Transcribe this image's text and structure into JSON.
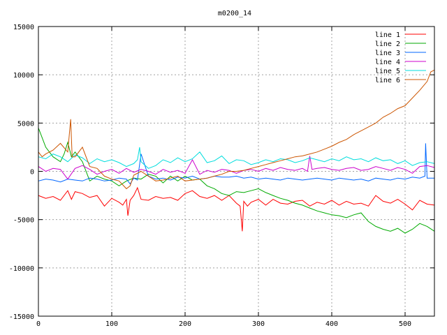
{
  "chart_data": {
    "type": "line",
    "title": "m0200_14",
    "xlabel": "",
    "ylabel": "",
    "xlim": [
      0,
      540
    ],
    "ylim": [
      -15000,
      15000
    ],
    "xticks": [
      0,
      100,
      200,
      300,
      400,
      500
    ],
    "yticks": [
      -15000,
      -10000,
      -5000,
      0,
      5000,
      10000,
      15000
    ],
    "grid": true,
    "legend_position": "top-right",
    "series": [
      {
        "name": "line 1",
        "color": "#ff0000",
        "x": [
          0,
          10,
          20,
          30,
          40,
          45,
          50,
          60,
          70,
          80,
          90,
          100,
          110,
          115,
          120,
          122,
          125,
          130,
          135,
          140,
          150,
          160,
          170,
          180,
          190,
          200,
          210,
          220,
          230,
          240,
          250,
          260,
          270,
          275,
          278,
          280,
          285,
          290,
          300,
          310,
          320,
          330,
          340,
          350,
          360,
          370,
          380,
          390,
          400,
          410,
          420,
          430,
          440,
          450,
          460,
          470,
          480,
          490,
          500,
          510,
          520,
          530,
          540
        ],
        "y": [
          -2500,
          -2800,
          -2600,
          -3000,
          -2000,
          -2900,
          -2100,
          -2300,
          -2700,
          -2500,
          -3600,
          -2800,
          -3200,
          -3500,
          -2900,
          -4600,
          -3000,
          -2500,
          -1700,
          -2900,
          -3000,
          -2600,
          -2800,
          -2700,
          -3000,
          -2300,
          -2000,
          -2600,
          -2800,
          -2500,
          -3000,
          -2500,
          -3300,
          -3600,
          -6200,
          -3100,
          -3600,
          -3200,
          -2900,
          -3500,
          -2900,
          -3300,
          -3400,
          -3100,
          -3000,
          -3600,
          -3200,
          -3400,
          -3000,
          -3500,
          -3100,
          -3400,
          -3300,
          -3600,
          -2500,
          -3100,
          -3300,
          -2900,
          -3400,
          -4000,
          -3000,
          -3400,
          -3500
        ]
      },
      {
        "name": "line 2",
        "color": "#00aa00",
        "x": [
          0,
          10,
          20,
          30,
          35,
          40,
          45,
          50,
          60,
          70,
          80,
          90,
          100,
          110,
          120,
          130,
          140,
          150,
          160,
          170,
          180,
          190,
          200,
          210,
          220,
          230,
          240,
          250,
          260,
          270,
          280,
          290,
          300,
          310,
          320,
          330,
          340,
          350,
          360,
          370,
          380,
          390,
          400,
          410,
          420,
          430,
          440,
          450,
          460,
          470,
          480,
          490,
          500,
          510,
          520,
          530,
          540
        ],
        "y": [
          4500,
          2500,
          1500,
          1000,
          1800,
          3000,
          1500,
          2000,
          1000,
          -1000,
          -500,
          -800,
          -1000,
          -1500,
          -1000,
          -700,
          -800,
          -300,
          -500,
          -1200,
          -500,
          -1000,
          -500,
          -900,
          -800,
          -1500,
          -1800,
          -2300,
          -2500,
          -2100,
          -2200,
          -2000,
          -1800,
          -2200,
          -2500,
          -2800,
          -3000,
          -3300,
          -3500,
          -3800,
          -4100,
          -4300,
          -4500,
          -4600,
          -4800,
          -4500,
          -4300,
          -5200,
          -5700,
          -6000,
          -6200,
          -5900,
          -6400,
          -6000,
          -5400,
          -5700,
          -6200
        ]
      },
      {
        "name": "line 3",
        "color": "#0066ff",
        "x": [
          0,
          10,
          20,
          30,
          40,
          50,
          60,
          70,
          80,
          90,
          100,
          110,
          120,
          125,
          130,
          135,
          140,
          150,
          160,
          170,
          180,
          190,
          200,
          210,
          220,
          230,
          240,
          250,
          260,
          270,
          280,
          290,
          300,
          310,
          320,
          330,
          340,
          350,
          360,
          370,
          380,
          390,
          400,
          410,
          420,
          430,
          440,
          450,
          460,
          470,
          480,
          490,
          500,
          510,
          520,
          527,
          528,
          530,
          540
        ],
        "y": [
          -1000,
          -800,
          -900,
          -1100,
          -800,
          -900,
          -1000,
          -700,
          -800,
          -1000,
          -900,
          -700,
          -800,
          -1300,
          -700,
          -900,
          1800,
          -500,
          -800,
          -700,
          -900,
          -600,
          -700,
          -500,
          -800,
          -700,
          -500,
          -600,
          -600,
          -500,
          -700,
          -600,
          -800,
          -700,
          -800,
          -900,
          -700,
          -800,
          -900,
          -800,
          -700,
          -800,
          -900,
          -700,
          -800,
          -900,
          -800,
          -1000,
          -700,
          -800,
          -900,
          -700,
          -800,
          -600,
          -700,
          -500,
          2900,
          -700,
          -700
        ]
      },
      {
        "name": "line 4",
        "color": "#cc00cc",
        "x": [
          0,
          10,
          20,
          30,
          40,
          50,
          60,
          70,
          80,
          90,
          100,
          110,
          120,
          130,
          140,
          150,
          160,
          170,
          180,
          190,
          200,
          210,
          220,
          230,
          240,
          250,
          260,
          270,
          280,
          290,
          300,
          310,
          320,
          330,
          340,
          350,
          360,
          367,
          370,
          373,
          380,
          390,
          400,
          410,
          420,
          430,
          440,
          450,
          460,
          470,
          480,
          490,
          500,
          510,
          520,
          530,
          540
        ],
        "y": [
          500,
          0,
          300,
          200,
          -800,
          300,
          600,
          200,
          -300,
          0,
          200,
          -200,
          300,
          -100,
          200,
          0,
          -300,
          200,
          -100,
          100,
          -200,
          1200,
          -300,
          100,
          -100,
          200,
          100,
          -200,
          100,
          200,
          0,
          300,
          100,
          400,
          200,
          100,
          300,
          0,
          1600,
          200,
          300,
          400,
          200,
          100,
          300,
          400,
          100,
          200,
          500,
          300,
          100,
          400,
          200,
          -200,
          500,
          600,
          400
        ]
      },
      {
        "name": "line 5",
        "color": "#00dddd",
        "x": [
          0,
          10,
          20,
          30,
          40,
          50,
          60,
          70,
          80,
          90,
          100,
          110,
          120,
          130,
          135,
          138,
          140,
          150,
          160,
          170,
          180,
          190,
          200,
          210,
          220,
          230,
          240,
          250,
          260,
          270,
          280,
          290,
          300,
          310,
          320,
          330,
          340,
          350,
          360,
          370,
          380,
          390,
          400,
          410,
          420,
          430,
          440,
          450,
          460,
          470,
          480,
          490,
          500,
          510,
          520,
          530,
          540
        ],
        "y": [
          1500,
          1300,
          1800,
          1500,
          1000,
          1700,
          1400,
          800,
          1300,
          1000,
          1200,
          900,
          500,
          800,
          1200,
          2500,
          1000,
          300,
          600,
          1200,
          900,
          1400,
          1000,
          1300,
          2000,
          900,
          1100,
          1600,
          800,
          1200,
          1100,
          700,
          900,
          1200,
          1000,
          1300,
          1200,
          900,
          1100,
          1400,
          1200,
          1000,
          1300,
          1100,
          1500,
          1200,
          1300,
          1000,
          1400,
          1100,
          1200,
          800,
          1100,
          600,
          900,
          1000,
          800
        ]
      },
      {
        "name": "line 6",
        "color": "#cc5500",
        "x": [
          0,
          5,
          10,
          20,
          30,
          40,
          44,
          46,
          50,
          60,
          70,
          80,
          90,
          100,
          110,
          120,
          125,
          130,
          140,
          150,
          160,
          170,
          180,
          190,
          200,
          210,
          220,
          230,
          240,
          250,
          260,
          270,
          280,
          290,
          300,
          310,
          320,
          330,
          340,
          350,
          360,
          370,
          380,
          390,
          400,
          410,
          420,
          430,
          440,
          450,
          460,
          470,
          480,
          490,
          500,
          510,
          520,
          530,
          535,
          540
        ],
        "y": [
          2000,
          1500,
          1800,
          2200,
          2900,
          2000,
          5400,
          1500,
          1500,
          2500,
          500,
          300,
          -500,
          -800,
          -1000,
          -1800,
          -1500,
          -400,
          0,
          -500,
          -1000,
          -900,
          -700,
          -500,
          -1000,
          -900,
          -800,
          -700,
          -500,
          -300,
          0,
          0,
          100,
          300,
          500,
          700,
          900,
          1100,
          1300,
          1500,
          1600,
          1800,
          2000,
          2300,
          2600,
          3000,
          3300,
          3800,
          4200,
          4600,
          5000,
          5600,
          6000,
          6500,
          6800,
          7600,
          8400,
          9300,
          10300,
          10500
        ]
      }
    ]
  }
}
